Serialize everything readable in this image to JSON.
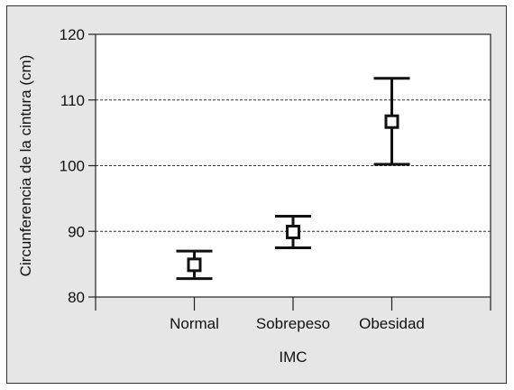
{
  "chart_data": {
    "type": "error-bar",
    "title": "",
    "xlabel": "IMC",
    "ylabel": "Circunferencia de la cintura (cm)",
    "ylim": [
      80,
      120
    ],
    "yticks": [
      80,
      90,
      100,
      110,
      120
    ],
    "grid": "horizontal dashed at 90, 100, 110",
    "categories": [
      "Normal",
      "Sobrepeso",
      "Obesidad"
    ],
    "series": [
      {
        "mean": [
          84.9,
          89.9,
          106.7
        ],
        "lower": [
          82.8,
          87.5,
          100.2
        ],
        "upper": [
          87.0,
          92.3,
          113.3
        ]
      }
    ]
  }
}
